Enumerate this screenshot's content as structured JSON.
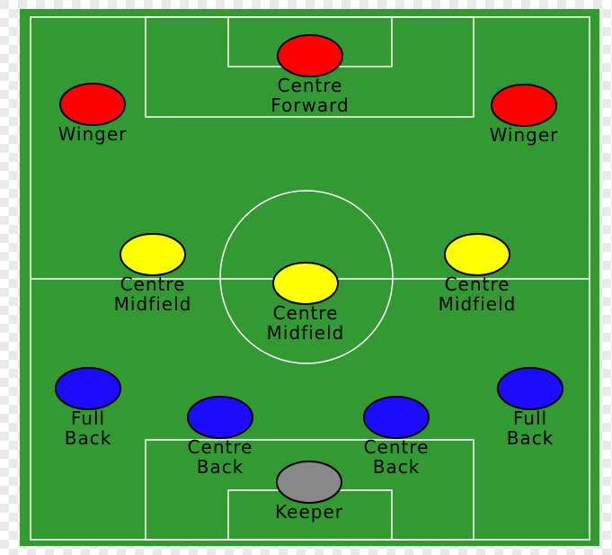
{
  "colors": {
    "background_light": "#ffffff",
    "background_check": "#e9e9e9",
    "grass": "#339933",
    "line": "#ffffff",
    "forward": "#ff0000",
    "midfield": "#ffff00",
    "defence": "#1a0dff",
    "keeper": "#888888",
    "text": "#000000"
  },
  "players": [
    {
      "id": "centre-forward",
      "role": "forward",
      "label_lines": [
        "Centre",
        "Forward"
      ]
    },
    {
      "id": "winger-left",
      "role": "forward",
      "label_lines": [
        "Winger"
      ]
    },
    {
      "id": "winger-right",
      "role": "forward",
      "label_lines": [
        "Winger"
      ]
    },
    {
      "id": "centre-midfield-left",
      "role": "midfield",
      "label_lines": [
        "Centre",
        "Midfield"
      ]
    },
    {
      "id": "centre-midfield-center",
      "role": "midfield",
      "label_lines": [
        "Centre",
        "Midfield"
      ]
    },
    {
      "id": "centre-midfield-right",
      "role": "midfield",
      "label_lines": [
        "Centre",
        "Midfield"
      ]
    },
    {
      "id": "full-back-left",
      "role": "defence",
      "label_lines": [
        "Full",
        "Back"
      ]
    },
    {
      "id": "full-back-right",
      "role": "defence",
      "label_lines": [
        "Full",
        "Back"
      ]
    },
    {
      "id": "centre-back-left",
      "role": "defence",
      "label_lines": [
        "Centre",
        "Back"
      ]
    },
    {
      "id": "centre-back-right",
      "role": "defence",
      "label_lines": [
        "Centre",
        "Back"
      ]
    },
    {
      "id": "keeper",
      "role": "keeper",
      "label_lines": [
        "Keeper"
      ]
    }
  ]
}
